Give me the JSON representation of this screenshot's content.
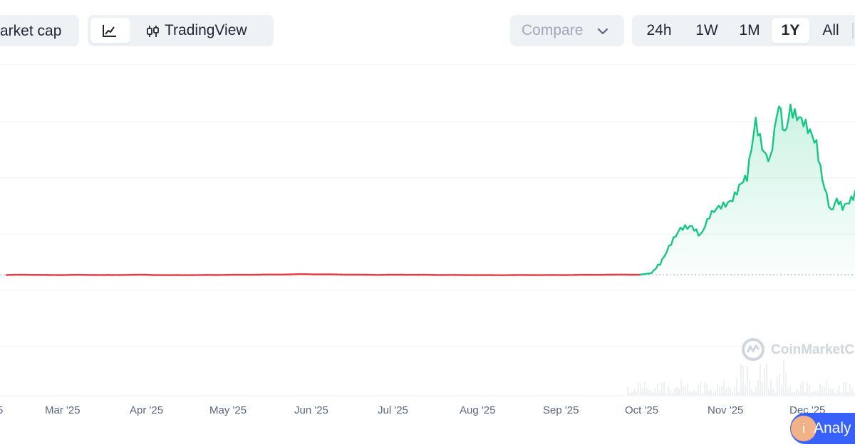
{
  "toolbar": {
    "market_cap_label": "arket cap",
    "chart_type_line_icon": "line-chart-icon",
    "tradingview_icon": "candlestick-icon",
    "tradingview_label": "TradingView",
    "compare_label": "Compare",
    "compare_icon": "chevron-down-icon",
    "ranges": [
      "24h",
      "1W",
      "1M",
      "1Y",
      "All"
    ],
    "active_range": "1Y"
  },
  "watermark": {
    "brand": "CoinMarketC",
    "icon": "coinmarketcap-logo"
  },
  "analytics_button": {
    "label": "Analy",
    "icon": "info-icon"
  },
  "colors": {
    "up_line": "#16c784",
    "down_line": "#ea3943",
    "up_fill": "rgba(22,199,132,0.18)",
    "down_fill": "rgba(234,57,67,0.25)",
    "grid": "#eff2f5",
    "axis_text": "#58667e",
    "accent": "#3861fb"
  },
  "chart_data": {
    "type": "area",
    "title": "",
    "xlabel": "",
    "ylabel": "",
    "x_tick_labels": [
      "5",
      "Mar '25",
      "Apr '25",
      "May '25",
      "Jun '25",
      "Jul '25",
      "Aug '25",
      "Sep '25",
      "Oct '25",
      "Nov '25",
      "Dec '25"
    ],
    "y_tick_labels_visible": false,
    "grid": true,
    "baseline_note": "dotted baseline at the starting price; segment below baseline red, above baseline green",
    "series": [
      {
        "x": [
          "2025-02-23",
          "2025-03-01",
          "2025-03-10",
          "2025-03-20",
          "2025-04-01",
          "2025-04-10",
          "2025-04-20",
          "2025-05-01",
          "2025-05-10",
          "2025-05-20",
          "2025-06-01",
          "2025-06-05",
          "2025-06-15",
          "2025-06-25",
          "2025-07-01",
          "2025-07-10",
          "2025-07-20",
          "2025-08-01",
          "2025-08-10",
          "2025-08-20",
          "2025-09-01",
          "2025-09-10",
          "2025-09-20",
          "2025-09-25",
          "2025-09-30",
          "2025-10-04",
          "2025-10-07",
          "2025-10-10",
          "2025-10-14",
          "2025-10-18",
          "2025-10-21",
          "2025-10-24",
          "2025-10-28",
          "2025-11-01",
          "2025-11-04",
          "2025-11-06",
          "2025-11-09",
          "2025-11-12",
          "2025-11-14",
          "2025-11-17",
          "2025-11-19",
          "2025-11-21",
          "2025-11-24",
          "2025-11-27",
          "2025-11-30",
          "2025-12-02",
          "2025-12-05",
          "2025-12-07",
          "2025-12-09",
          "2025-12-12",
          "2025-12-14",
          "2025-12-16",
          "2025-12-18",
          "2025-12-21"
        ],
        "y": [
          0.99,
          1.0,
          0.99,
          0.995,
          0.99,
          1.0,
          0.985,
          0.99,
          0.995,
          1.0,
          1.01,
          1.02,
          1.01,
          1.0,
          0.995,
          1.0,
          0.995,
          0.99,
          0.985,
          0.99,
          0.99,
          0.995,
          1.0,
          1.005,
          1.0,
          1.05,
          1.4,
          1.9,
          2.4,
          2.6,
          2.3,
          2.8,
          3.2,
          3.5,
          3.85,
          4.0,
          6.0,
          5.0,
          4.6,
          6.3,
          5.5,
          6.5,
          6.0,
          5.5,
          5.2,
          4.2,
          3.0,
          3.3,
          3.1,
          3.5,
          3.8,
          3.6,
          3.7,
          3.2
        ]
      }
    ]
  }
}
